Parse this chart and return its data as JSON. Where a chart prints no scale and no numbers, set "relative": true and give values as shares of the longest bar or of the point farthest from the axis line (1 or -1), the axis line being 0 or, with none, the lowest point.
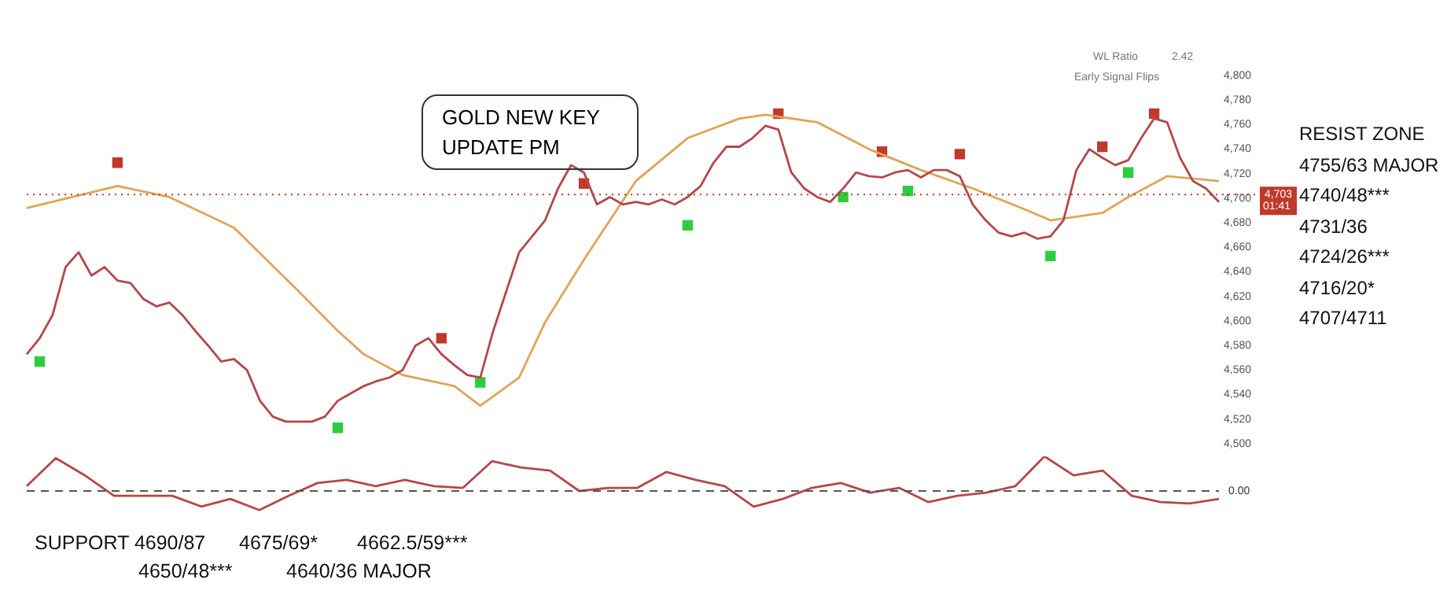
{
  "chart_data": [
    {
      "type": "line",
      "title": "GOLD NEW KEY UPDATE PM",
      "tick_labels": "y",
      "grid": false,
      "legend": false,
      "categories": [
        null,
        null,
        null,
        null,
        null,
        null,
        null,
        null,
        null,
        null,
        null,
        null,
        null,
        null,
        null,
        null,
        null,
        null,
        null,
        null,
        null,
        null,
        null,
        null,
        null,
        null,
        null,
        null,
        null,
        null,
        null,
        null,
        null,
        null,
        null,
        null,
        null,
        null,
        null,
        null,
        null,
        null,
        null,
        null,
        null,
        null,
        null,
        null,
        null,
        null,
        null,
        null,
        null,
        null,
        null,
        null,
        null,
        null,
        null,
        null,
        null,
        null,
        null,
        null,
        null,
        null,
        null,
        null,
        null,
        null,
        null,
        null,
        null,
        null,
        null,
        null,
        null,
        null,
        null,
        null,
        null,
        null,
        null,
        null,
        null,
        null,
        null,
        null,
        null,
        null,
        null,
        null,
        null
      ],
      "ylim": [
        4500,
        4800
      ],
      "yticks": [
        {
          "value": 4500,
          "label": "4,500"
        },
        {
          "value": 4520,
          "label": "4,520"
        },
        {
          "value": 4540,
          "label": "4,540"
        },
        {
          "value": 4560,
          "label": "4,560"
        },
        {
          "value": 4580,
          "label": "4,580"
        },
        {
          "value": 4600,
          "label": "4,600"
        },
        {
          "value": 4620,
          "label": "4,620"
        },
        {
          "value": 4640,
          "label": "4,640"
        },
        {
          "value": 4660,
          "label": "4,660"
        },
        {
          "value": 4680,
          "label": "4,680"
        },
        {
          "value": 4700,
          "label": "4,700"
        },
        {
          "value": 4720,
          "label": "4,720"
        },
        {
          "value": 4740,
          "label": "4,740"
        },
        {
          "value": 4760,
          "label": "4,760"
        },
        {
          "value": 4780,
          "label": "4,780"
        },
        {
          "value": 4800,
          "label": "4,800"
        }
      ],
      "series": [
        {
          "color": "#b5474a",
          "values": [
            4573,
            4586,
            4605,
            4644,
            4656,
            4637,
            4644,
            4633,
            4631,
            4618,
            4612,
            4615,
            4605,
            4592,
            4580,
            4567,
            4569,
            4560,
            4535,
            4522,
            4518,
            4518,
            4518,
            4522,
            4535,
            4541,
            4547,
            4551,
            4554,
            4560,
            4580,
            4586,
            4573,
            4564,
            4556,
            4554,
            4592,
            4624,
            4656,
            4669,
            4682,
            4708,
            4727,
            4721,
            4695,
            4701,
            4695,
            4697,
            4695,
            4699,
            4695,
            4701,
            4710,
            4729,
            4742,
            4742,
            4749,
            4759,
            4756,
            4721,
            4708,
            4701,
            4697,
            4708,
            4721,
            4718,
            4717,
            4721,
            4723,
            4717,
            4723,
            4723,
            4718,
            4695,
            4682,
            4672,
            4669,
            4672,
            4667,
            4669,
            4682,
            4723,
            4740,
            4733,
            4727,
            4731,
            4749,
            4765,
            4762,
            4733,
            4714,
            4708,
            4697
          ]
        },
        {
          "color": "#e0a458",
          "values": [
            4692,
            null,
            null,
            null,
            null,
            null,
            null,
            4710,
            null,
            null,
            null,
            4701,
            null,
            null,
            null,
            null,
            4676,
            null,
            null,
            null,
            null,
            4624,
            null,
            null,
            4592,
            null,
            4573,
            null,
            null,
            4556,
            null,
            null,
            null,
            4547,
            null,
            4531,
            null,
            null,
            4554,
            null,
            4599,
            null,
            null,
            4650,
            null,
            null,
            null,
            4714,
            null,
            null,
            null,
            4749,
            null,
            null,
            null,
            4765,
            null,
            4768,
            null,
            null,
            null,
            4762,
            null,
            null,
            null,
            4740,
            null,
            null,
            null,
            4723,
            null,
            null,
            null,
            4708,
            null,
            null,
            null,
            4691,
            null,
            4682,
            null,
            null,
            null,
            4688,
            null,
            4701,
            null,
            null,
            4718,
            null,
            null,
            null,
            4714
          ]
        },
        {
          "type": "scatter",
          "marker": "square",
          "color": "#c0392b",
          "values": [
            null,
            null,
            null,
            null,
            null,
            null,
            null,
            4729,
            null,
            null,
            null,
            null,
            null,
            null,
            null,
            null,
            null,
            null,
            null,
            null,
            null,
            null,
            null,
            null,
            null,
            null,
            null,
            null,
            null,
            null,
            null,
            null,
            4586,
            null,
            null,
            null,
            null,
            null,
            null,
            null,
            null,
            null,
            null,
            4712,
            null,
            null,
            null,
            null,
            null,
            null,
            null,
            null,
            null,
            null,
            null,
            null,
            null,
            null,
            4769,
            null,
            null,
            null,
            null,
            null,
            null,
            null,
            4738,
            null,
            null,
            null,
            null,
            null,
            4736,
            null,
            null,
            null,
            null,
            null,
            null,
            null,
            null,
            null,
            null,
            4742,
            null,
            null,
            null,
            4769,
            null,
            null,
            null,
            null,
            null
          ]
        },
        {
          "type": "scatter",
          "marker": "square",
          "color": "#2ecc40",
          "values": [
            null,
            4567,
            null,
            null,
            null,
            null,
            null,
            null,
            null,
            null,
            null,
            null,
            null,
            null,
            null,
            null,
            null,
            null,
            null,
            null,
            null,
            null,
            null,
            null,
            4513,
            null,
            null,
            null,
            null,
            null,
            null,
            null,
            null,
            null,
            null,
            4550,
            null,
            null,
            null,
            null,
            null,
            null,
            null,
            null,
            null,
            null,
            null,
            null,
            null,
            null,
            null,
            4678,
            null,
            null,
            null,
            null,
            null,
            null,
            null,
            null,
            null,
            null,
            null,
            4701,
            null,
            null,
            null,
            null,
            4706,
            null,
            null,
            null,
            null,
            null,
            null,
            null,
            null,
            null,
            null,
            4653,
            null,
            null,
            null,
            null,
            null,
            4721,
            null,
            null,
            null,
            null,
            null,
            null,
            null
          ]
        }
      ],
      "ref_lines": [
        {
          "axis": "y",
          "value": 4703,
          "label": "4,703",
          "color": "#c0392b",
          "line_style": "dotted"
        }
      ],
      "annotations": [
        "WL Ratio",
        "2.42",
        "Early Signal Flips",
        "01:41",
        "RESIST ZONE",
        "4755/63 MAJOR",
        "4740/48***",
        "4731/36",
        "4724/26***",
        "4716/20*",
        "4707/4711",
        "SUPPORT 4690/87",
        "4675/69*",
        "4662.5/59***",
        "4650/48***",
        "4640/36 MAJOR"
      ]
    },
    {
      "type": "line",
      "relative": true,
      "tick_labels": false,
      "grid": false,
      "legend": false,
      "categories": [
        null,
        null,
        null,
        null,
        null,
        null,
        null,
        null,
        null,
        null,
        null,
        null,
        null,
        null,
        null,
        null,
        null,
        null,
        null,
        null,
        null,
        null,
        null,
        null,
        null,
        null,
        null,
        null,
        null,
        null,
        null,
        null,
        null,
        null,
        null,
        null,
        null,
        null,
        null,
        null,
        null,
        null
      ],
      "series": [
        {
          "color": "#b5474a",
          "values": [
            0.14,
            0.95,
            0.45,
            -0.14,
            -0.14,
            -0.14,
            -0.45,
            -0.23,
            -0.55,
            -0.14,
            0.23,
            0.32,
            0.14,
            0.32,
            0.14,
            0.09,
            0.86,
            0.68,
            0.59,
            0,
            0.09,
            0.09,
            0.55,
            0.32,
            0.14,
            -0.45,
            -0.23,
            0.09,
            0.23,
            -0.05,
            0.09,
            -0.32,
            -0.14,
            -0.05,
            0.14,
            1,
            0.45,
            0.59,
            -0.14,
            -0.32,
            -0.36,
            -0.23
          ]
        }
      ],
      "ref_lines": [
        {
          "axis": "y",
          "value": 0,
          "label": "0.00",
          "color": "#555555",
          "line_style": "dashed"
        }
      ]
    }
  ]
}
